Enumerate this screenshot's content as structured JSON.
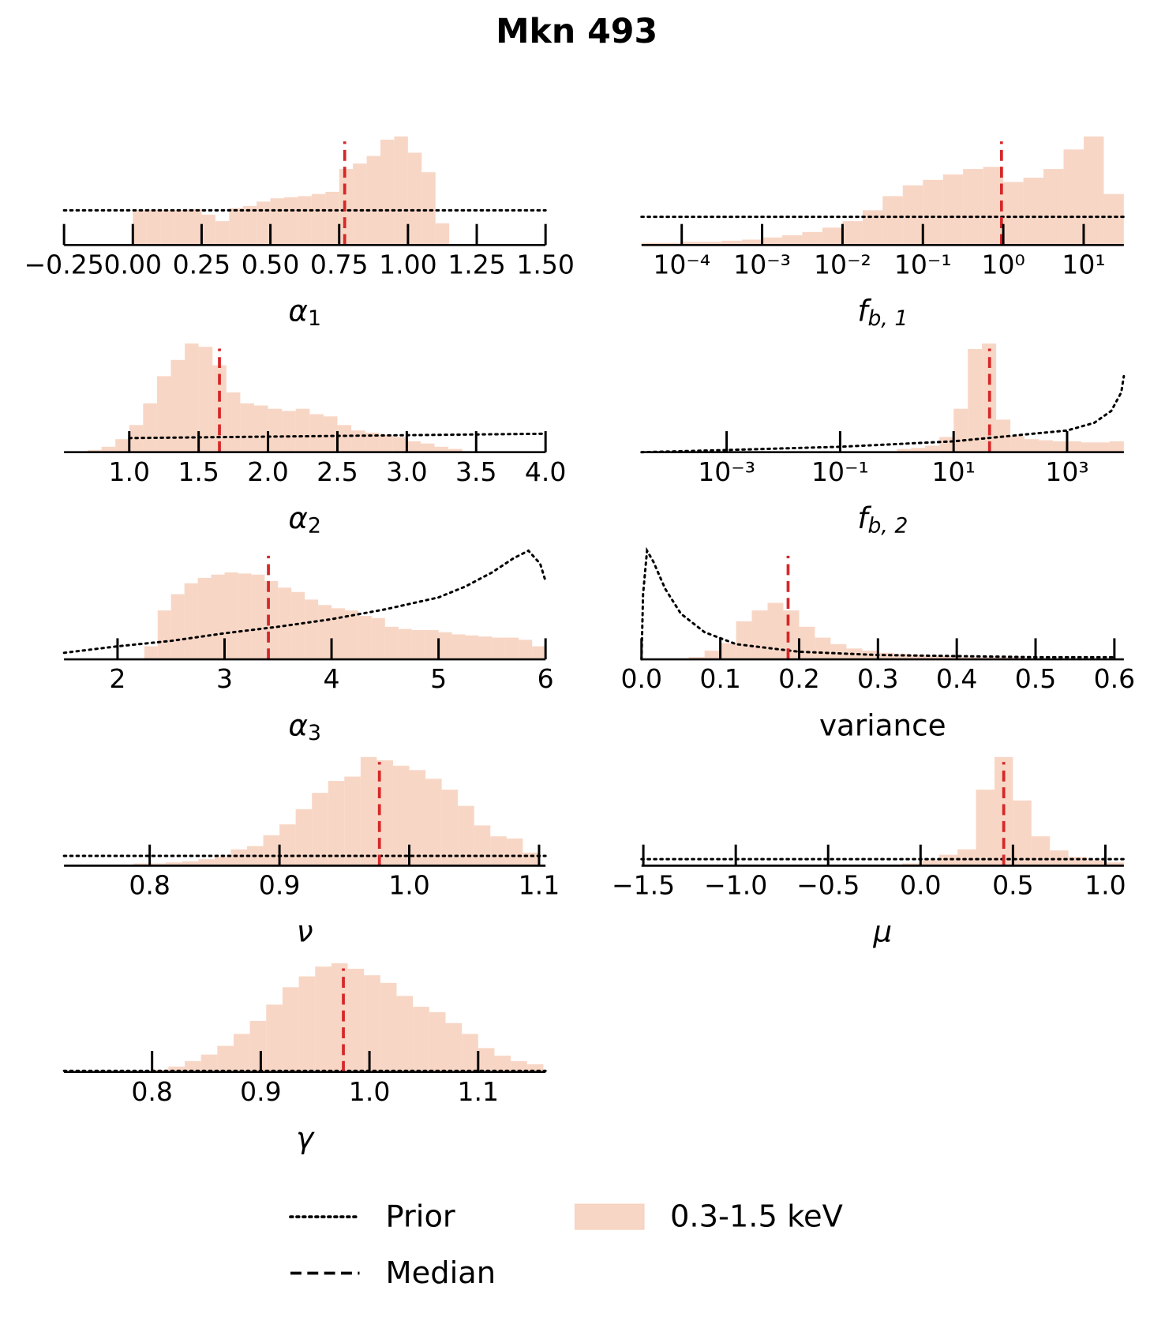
{
  "title": "Mkn 493",
  "legend": [
    {
      "label": "Prior",
      "style": "dotted",
      "color": "#000000"
    },
    {
      "label": "Median",
      "style": "dashed",
      "color": "#000000"
    },
    {
      "label": "0.3-1.5 keV",
      "style": "patch",
      "color": "#f7cfbb"
    }
  ],
  "chart_data": [
    {
      "type": "histogram",
      "xlabel": "α",
      "xlabel_sub": "1",
      "log_x": false,
      "xlim": [
        -0.25,
        1.5
      ],
      "ylim": [
        0,
        100
      ],
      "xticks": [
        {
          "value": -0.25,
          "label": "−0.25"
        },
        {
          "value": 0,
          "label": "0.00"
        },
        0.25,
        {
          "value": 0.5,
          "label": "0.50"
        },
        0.75,
        {
          "value": 1,
          "label": "1.00"
        },
        1.25,
        {
          "value": 1.5,
          "label": "1.50"
        }
      ],
      "bins": [
        0,
        0.05,
        0.1,
        0.15,
        0.2,
        0.25,
        0.3,
        0.35,
        0.4,
        0.45,
        0.5,
        0.55,
        0.6,
        0.65,
        0.7,
        0.75,
        0.8,
        0.85,
        0.9,
        0.95,
        1.0,
        1.05,
        1.1,
        1.15
      ],
      "values": [
        32,
        32,
        32,
        32,
        33,
        28,
        22,
        34,
        36,
        40,
        43,
        44,
        45,
        47,
        49,
        70,
        75,
        82,
        97,
        100,
        85,
        67,
        20
      ],
      "color": "#f7cfbb",
      "median": 0.77,
      "median_color": "#d62728",
      "prior": {
        "x": [
          -0.25,
          1.5
        ],
        "y": [
          32,
          32
        ]
      },
      "prior_color": "#000000"
    },
    {
      "type": "histogram",
      "xlabel": "f",
      "xlabel_sub": "b, 1",
      "log_x": true,
      "xlim": [
        3.16e-05,
        31.6
      ],
      "ylim": [
        0,
        100
      ],
      "xticks": [
        {
          "value": 0.0001,
          "label": "10⁻⁴"
        },
        {
          "value": 0.001,
          "label": "10⁻³"
        },
        {
          "value": 0.01,
          "label": "10⁻²"
        },
        {
          "value": 0.1,
          "label": "10⁻¹"
        },
        {
          "value": 1,
          "label": "10⁰"
        },
        {
          "value": 10,
          "label": "10¹"
        }
      ],
      "bins": [
        3.16e-05,
        5.62e-05,
        0.0001,
        0.000178,
        0.000316,
        0.000562,
        0.001,
        0.00178,
        0.00316,
        0.00562,
        0.01,
        0.0178,
        0.0316,
        0.0562,
        0.1,
        0.178,
        0.316,
        0.562,
        1,
        1.78,
        3.16,
        5.62,
        10,
        17.8,
        31.6
      ],
      "values": [
        2,
        2,
        3,
        3,
        4,
        5,
        7,
        9,
        12,
        16,
        22,
        32,
        45,
        55,
        60,
        65,
        70,
        72,
        58,
        62,
        70,
        88,
        100,
        47
      ],
      "color": "#f7cfbb",
      "median": 0.95,
      "median_color": "#d62728",
      "prior": {
        "x": [
          3.16e-05,
          31.6
        ],
        "y": [
          26,
          26
        ]
      },
      "prior_color": "#000000"
    },
    {
      "type": "histogram",
      "xlabel": "α",
      "xlabel_sub": "2",
      "log_x": false,
      "xlim": [
        0.53,
        4.0
      ],
      "ylim": [
        0,
        100
      ],
      "xticks": [
        {
          "value": 1,
          "label": "1.0"
        },
        1.5,
        {
          "value": 2,
          "label": "2.0"
        },
        2.5,
        {
          "value": 3,
          "label": "3.0"
        },
        3.5,
        {
          "value": 4,
          "label": "4.0"
        }
      ],
      "bins": [
        0.7,
        0.8,
        0.9,
        1.0,
        1.1,
        1.2,
        1.3,
        1.4,
        1.5,
        1.6,
        1.7,
        1.8,
        1.9,
        2.0,
        2.1,
        2.2,
        2.3,
        2.4,
        2.5,
        2.6,
        2.7,
        2.8,
        2.9,
        3.0,
        3.1,
        3.2,
        3.3,
        3.4
      ],
      "values": [
        2,
        5,
        12,
        25,
        45,
        70,
        85,
        100,
        97,
        80,
        55,
        45,
        43,
        40,
        38,
        40,
        35,
        33,
        25,
        20,
        18,
        16,
        14,
        10,
        8,
        5,
        3
      ],
      "color": "#f7cfbb",
      "median": 1.65,
      "median_color": "#d62728",
      "prior": {
        "x": [
          1.0,
          4.0
        ],
        "y": [
          13,
          17
        ]
      },
      "prior_color": "#000000"
    },
    {
      "type": "histogram",
      "xlabel": "f",
      "xlabel_sub": "b, 2",
      "log_x": true,
      "xlim": [
        3.16e-05,
        10000
      ],
      "ylim": [
        0,
        100
      ],
      "xticks": [
        {
          "value": 0.001,
          "label": "10⁻³"
        },
        {
          "value": 0.1,
          "label": "10⁻¹"
        },
        {
          "value": 10,
          "label": "10¹"
        },
        {
          "value": 1000,
          "label": "10³"
        }
      ],
      "bins": [
        1,
        1.78,
        3.16,
        5.62,
        10,
        17.8,
        31.6,
        56.2,
        100,
        178,
        316,
        562,
        1000,
        1780,
        3160,
        5620,
        10000
      ],
      "values": [
        3,
        4,
        6,
        14,
        40,
        95,
        100,
        30,
        15,
        12,
        11,
        10,
        10,
        9,
        9,
        10
      ],
      "color": "#f7cfbb",
      "median": 43,
      "median_color": "#d62728",
      "prior": {
        "x": [
          3.16e-05,
          0.001,
          0.1,
          10,
          1000,
          3000,
          6000,
          9000,
          10000
        ],
        "y": [
          0,
          2,
          5,
          10,
          20,
          27,
          38,
          55,
          70
        ]
      },
      "prior_color": "#000000"
    },
    {
      "type": "histogram",
      "xlabel": "α",
      "xlabel_sub": "3",
      "log_x": false,
      "xlim": [
        1.5,
        6
      ],
      "ylim": [
        0,
        100
      ],
      "xticks": [
        2,
        3,
        4,
        5,
        6
      ],
      "bins": [
        2.25,
        2.375,
        2.5,
        2.625,
        2.75,
        2.875,
        3,
        3.125,
        3.25,
        3.375,
        3.5,
        3.625,
        3.75,
        3.875,
        4,
        4.125,
        4.25,
        4.375,
        4.5,
        4.625,
        4.75,
        4.875,
        5,
        5.125,
        5.25,
        5.375,
        5.5,
        5.625,
        5.75,
        5.875,
        6
      ],
      "values": [
        12,
        45,
        60,
        70,
        75,
        78,
        80,
        79,
        78,
        72,
        66,
        62,
        55,
        50,
        47,
        45,
        40,
        38,
        30,
        28,
        27,
        27,
        25,
        23,
        22,
        21,
        20,
        20,
        18,
        12
      ],
      "color": "#f7cfbb",
      "median": 3.41,
      "median_color": "#d62728",
      "prior": {
        "x": [
          1.5,
          2,
          2.5,
          3,
          3.5,
          4,
          4.5,
          5,
          5.25,
          5.5,
          5.7,
          5.84,
          5.95,
          6
        ],
        "y": [
          6,
          12,
          17,
          24,
          30,
          37,
          46,
          57,
          67,
          80,
          93,
          100,
          88,
          72
        ]
      },
      "prior_color": "#000000"
    },
    {
      "type": "histogram",
      "xlabel": "variance",
      "log_x": false,
      "xlim": [
        0,
        0.612
      ],
      "ylim": [
        0,
        100
      ],
      "xticks": [
        {
          "value": 0,
          "label": "0.0"
        },
        0.1,
        0.2,
        0.3,
        0.4,
        0.5,
        0.6
      ],
      "bins": [
        0.06,
        0.08,
        0.1,
        0.12,
        0.14,
        0.16,
        0.18,
        0.2,
        0.22,
        0.24,
        0.26,
        0.28,
        0.3,
        0.32,
        0.34,
        0.36,
        0.38,
        0.4,
        0.42,
        0.44,
        0.46,
        0.48,
        0.5,
        0.52,
        0.54,
        0.56,
        0.58,
        0.6
      ],
      "values": [
        2,
        8,
        15,
        35,
        45,
        52,
        45,
        30,
        20,
        14,
        10,
        8,
        6,
        5,
        4,
        3,
        3,
        2,
        2,
        2,
        2,
        1,
        1,
        1,
        1,
        1,
        1
      ],
      "color": "#f7cfbb",
      "median": 0.186,
      "median_color": "#d62728",
      "prior": {
        "x": [
          0,
          0.002,
          0.007,
          0.015,
          0.03,
          0.05,
          0.08,
          0.12,
          0.2,
          0.3,
          0.4,
          0.5,
          0.6
        ],
        "y": [
          0,
          60,
          100,
          90,
          65,
          42,
          25,
          14,
          7,
          4,
          3,
          2,
          2
        ]
      },
      "prior_color": "#000000"
    },
    {
      "type": "histogram",
      "xlabel": "ν",
      "log_x": false,
      "xlim": [
        0.734,
        1.105
      ],
      "ylim": [
        0,
        100
      ],
      "xticks": [
        0.8,
        0.9,
        {
          "value": 1,
          "label": "1.0"
        },
        1.1
      ],
      "bins": [
        0.775,
        0.7875,
        0.8,
        0.8125,
        0.825,
        0.8375,
        0.85,
        0.8625,
        0.875,
        0.8875,
        0.9,
        0.9125,
        0.925,
        0.9375,
        0.95,
        0.9625,
        0.975,
        0.9875,
        1.0,
        1.0125,
        1.025,
        1.0375,
        1.05,
        1.0625,
        1.075,
        1.0875,
        1.1
      ],
      "values": [
        1,
        2,
        2,
        3,
        4,
        6,
        8,
        15,
        18,
        28,
        38,
        52,
        67,
        78,
        82,
        100,
        97,
        92,
        88,
        80,
        70,
        55,
        37,
        27,
        25,
        12
      ],
      "color": "#f7cfbb",
      "median": 0.977,
      "median_color": "#d62728",
      "prior": {
        "x": [
          0.734,
          1.105
        ],
        "y": [
          9,
          9
        ]
      },
      "prior_color": "#000000"
    },
    {
      "type": "histogram",
      "xlabel": "μ",
      "log_x": false,
      "xlim": [
        -1.51,
        1.1
      ],
      "ylim": [
        0,
        100
      ],
      "xticks": [
        {
          "value": -1.5,
          "label": "−1.5"
        },
        {
          "value": -1,
          "label": "−1.0"
        },
        {
          "value": -0.5,
          "label": "−0.5"
        },
        {
          "value": 0,
          "label": "0.0"
        },
        0.5,
        {
          "value": 1,
          "label": "1.0"
        }
      ],
      "bins": [
        -0.1,
        0,
        0.1,
        0.2,
        0.3,
        0.4,
        0.5,
        0.6,
        0.7,
        0.8,
        0.9,
        1.0,
        1.1
      ],
      "values": [
        2,
        5,
        10,
        15,
        70,
        100,
        60,
        27,
        14,
        8,
        5,
        3
      ],
      "color": "#f7cfbb",
      "median": 0.45,
      "median_color": "#d62728",
      "prior": {
        "x": [
          -1.51,
          1.1
        ],
        "y": [
          6,
          6
        ]
      },
      "prior_color": "#000000"
    },
    {
      "type": "histogram",
      "xlabel": "γ",
      "log_x": false,
      "xlim": [
        0.719,
        1.162
      ],
      "ylim": [
        0,
        100
      ],
      "xticks": [
        0.8,
        0.9,
        {
          "value": 1,
          "label": "1.0"
        },
        1.1
      ],
      "bins": [
        0.8,
        0.815,
        0.83,
        0.845,
        0.86,
        0.875,
        0.89,
        0.905,
        0.92,
        0.935,
        0.95,
        0.965,
        0.98,
        0.995,
        1.01,
        1.025,
        1.04,
        1.055,
        1.07,
        1.085,
        1.1,
        1.115,
        1.13,
        1.145,
        1.16
      ],
      "values": [
        2,
        5,
        10,
        16,
        24,
        35,
        47,
        62,
        78,
        88,
        97,
        100,
        95,
        89,
        82,
        70,
        60,
        55,
        45,
        35,
        22,
        15,
        10,
        7
      ],
      "color": "#f7cfbb",
      "median": 0.976,
      "median_color": "#d62728",
      "prior": {
        "x": [
          0.719,
          1.162
        ],
        "y": [
          1,
          1
        ]
      },
      "prior_color": "#000000"
    }
  ]
}
